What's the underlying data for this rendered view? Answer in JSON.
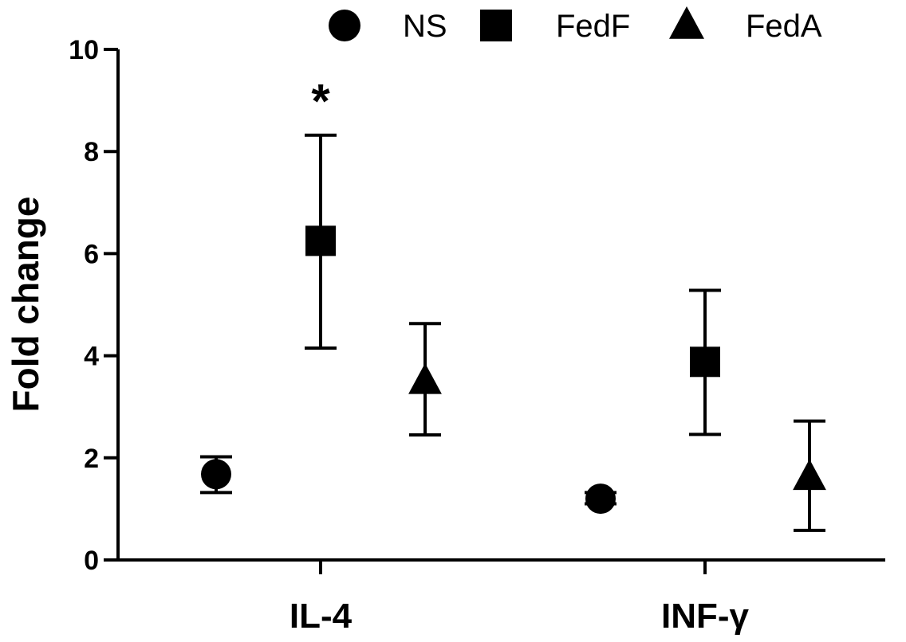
{
  "chart_data": {
    "type": "scatter",
    "title": "",
    "xlabel": "",
    "ylabel": "Fold change",
    "ylim": [
      0,
      10
    ],
    "yticks": [
      0,
      2,
      4,
      6,
      8,
      10
    ],
    "grid": false,
    "legend_position": "top-right",
    "categories": [
      "IL-4",
      "INF-γ"
    ],
    "series": [
      {
        "name": "NS",
        "marker": "circle",
        "values": [
          1.68,
          1.2
        ],
        "err_low": [
          1.32,
          1.1
        ],
        "err_high": [
          2.02,
          1.32
        ]
      },
      {
        "name": "FedF",
        "marker": "square",
        "values": [
          6.25,
          3.88
        ],
        "err_low": [
          4.15,
          2.46
        ],
        "err_high": [
          8.32,
          5.28
        ]
      },
      {
        "name": "FedA",
        "marker": "triangle",
        "values": [
          3.5,
          1.62
        ],
        "err_low": [
          2.45,
          0.58
        ],
        "err_high": [
          4.63,
          2.72
        ]
      }
    ],
    "annotations": [
      {
        "text": "*",
        "category": "IL-4",
        "series": "FedF"
      }
    ]
  }
}
